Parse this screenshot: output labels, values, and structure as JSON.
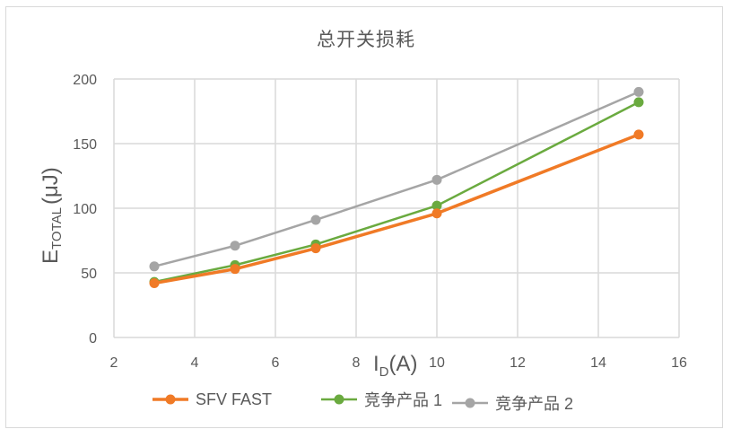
{
  "chart_data": {
    "type": "line",
    "title": "总开关损耗",
    "xlabel": "I_D(A)",
    "xlabel_main": "I",
    "xlabel_sub": "D",
    "xlabel_suffix": "(A)",
    "ylabel": "E_TOTAL(μJ)",
    "ylabel_main": "E",
    "ylabel_sub": "TOTAL",
    "ylabel_suffix": "(μJ)",
    "xlim": [
      2,
      16
    ],
    "ylim": [
      0,
      200
    ],
    "xticks": [
      2,
      4,
      6,
      8,
      10,
      12,
      14,
      16
    ],
    "yticks": [
      0,
      50,
      100,
      150,
      200
    ],
    "grid": true,
    "legend_position": "bottom",
    "x": [
      3,
      5,
      7,
      10,
      15
    ],
    "series": [
      {
        "name": "SFV FAST",
        "color": "#F07A26",
        "values": [
          42,
          53,
          69,
          96,
          157
        ]
      },
      {
        "name": "竞争产品 1",
        "color": "#6AAA3F",
        "values": [
          43,
          56,
          72,
          102,
          182
        ]
      },
      {
        "name": "竞争产品 2",
        "color": "#A5A5A5",
        "values": [
          55,
          71,
          91,
          122,
          190
        ]
      }
    ]
  }
}
